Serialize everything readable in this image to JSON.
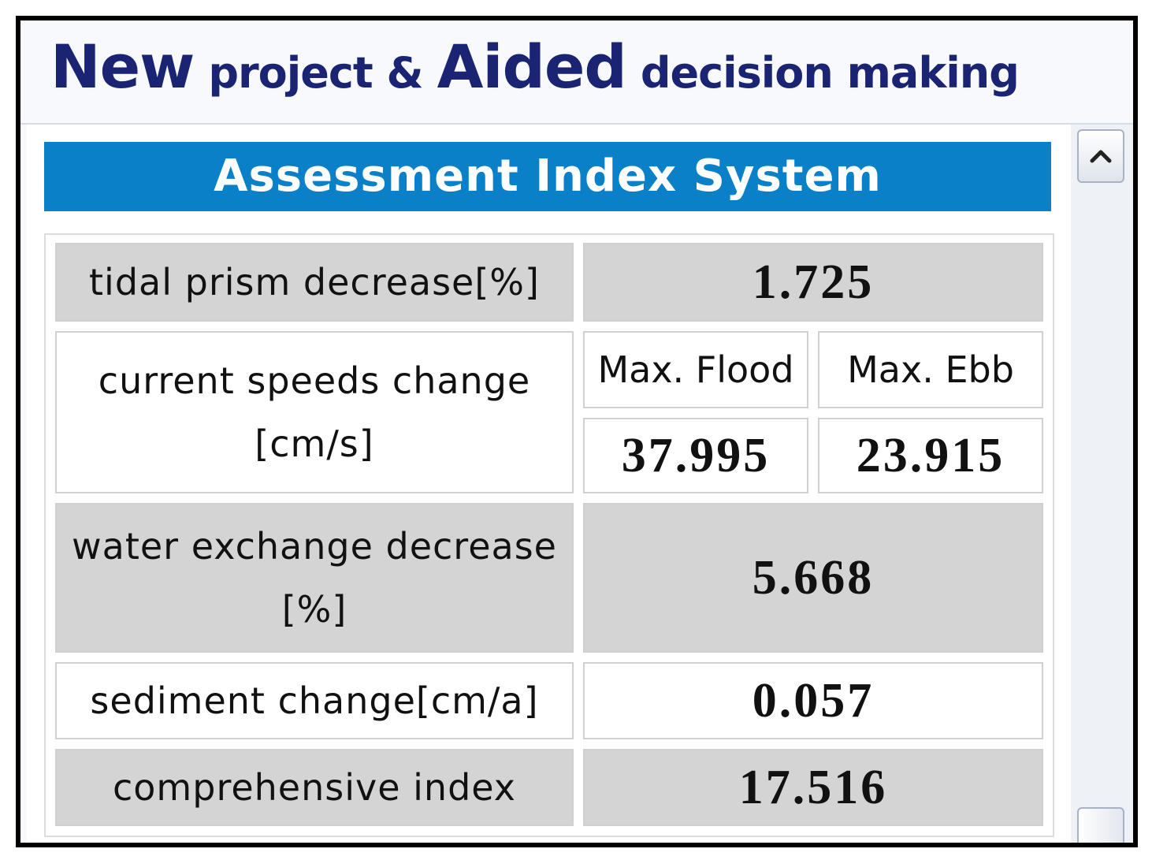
{
  "header": {
    "title_part1": "New",
    "title_part2": "project &",
    "title_part3": "Aided",
    "title_part4": "decision making"
  },
  "banner": {
    "title": "Assessment Index System"
  },
  "table": {
    "tidal_prism": {
      "label": "tidal prism decrease[%]",
      "value": "1.725"
    },
    "current_speeds": {
      "label_line1": "current speeds change",
      "label_line2": "[cm/s]",
      "flood_header": "Max. Flood",
      "ebb_header": "Max. Ebb",
      "flood_value": "37.995",
      "ebb_value": "23.915"
    },
    "water_exchange": {
      "label_line1": "water exchange decrease",
      "label_line2": "[%]",
      "value": "5.668"
    },
    "sediment": {
      "label": "sediment change[cm/a]",
      "value": "0.057"
    },
    "comprehensive": {
      "label": "comprehensive index",
      "value": "17.516"
    }
  },
  "scrollbar": {
    "up_icon": "chevron-up-icon"
  },
  "colors": {
    "title_text": "#1a2472",
    "banner_bg": "#0a80c8",
    "row_gray": "#d4d4d4"
  }
}
